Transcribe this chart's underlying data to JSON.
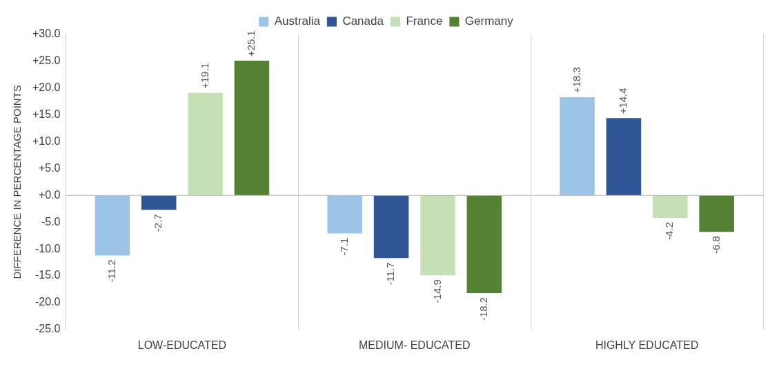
{
  "chart_data": {
    "type": "bar",
    "ylabel": "DIFFERENCE IN PERCENTAGE POINTS",
    "categories": [
      "LOW-EDUCATED",
      "MEDIUM- EDUCATED",
      "HIGHLY EDUCATED"
    ],
    "series": [
      {
        "name": "Australia",
        "color": "#9dc3e6",
        "values": [
          -11.2,
          -7.1,
          18.3
        ],
        "value_labels": [
          "-11.2",
          "-7.1",
          "+18.3"
        ]
      },
      {
        "name": "Canada",
        "color": "#2f5597",
        "values": [
          -2.7,
          -11.7,
          14.4
        ],
        "value_labels": [
          "-2.7",
          "-11.7",
          "+14.4"
        ]
      },
      {
        "name": "France",
        "color": "#c5e0b4",
        "values": [
          19.1,
          -14.9,
          -4.2
        ],
        "value_labels": [
          "+19.1",
          "-14.9",
          "-4.2"
        ]
      },
      {
        "name": "Germany",
        "color": "#548235",
        "values": [
          25.1,
          -18.2,
          -6.8
        ],
        "value_labels": [
          "+25.1",
          "-18.2",
          "-6.8"
        ]
      }
    ],
    "ylim": [
      -25,
      30
    ],
    "yticks": [
      {
        "value": -25,
        "label": "-25.0"
      },
      {
        "value": -20,
        "label": "-20.0"
      },
      {
        "value": -15,
        "label": "-15.0"
      },
      {
        "value": -10,
        "label": "-10.0"
      },
      {
        "value": -5,
        "label": "-5.0"
      },
      {
        "value": 0,
        "label": "+0.0"
      },
      {
        "value": 5,
        "label": "+5.0"
      },
      {
        "value": 10,
        "label": "+10.0"
      },
      {
        "value": 15,
        "label": "+15.0"
      },
      {
        "value": 20,
        "label": "+20.0"
      },
      {
        "value": 25,
        "label": "+25.0"
      },
      {
        "value": 30,
        "label": "+30.0"
      }
    ],
    "grid": "x",
    "legend": "top"
  }
}
